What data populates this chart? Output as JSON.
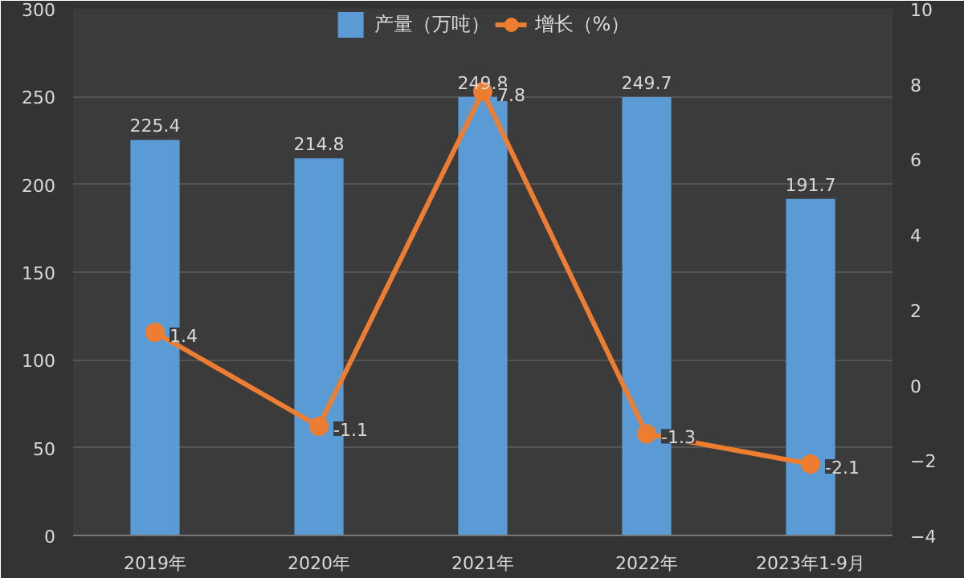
{
  "chart_data": {
    "type": "bar",
    "categories": [
      "2019年",
      "2020年",
      "2021年",
      "2022年",
      "2023年1-9月"
    ],
    "series": [
      {
        "name": "产量（万吨）",
        "color": "#5b9bd5",
        "values": [
          225.4,
          214.8,
          249.8,
          249.7,
          191.7
        ]
      },
      {
        "name": "增长（%）",
        "type": "line",
        "axis": "y2",
        "color": "#ed7d31",
        "values": [
          1.4,
          -1.1,
          7.8,
          -1.3,
          -2.1
        ]
      }
    ],
    "ylim": [
      0,
      300
    ],
    "yticks": [
      0,
      50,
      100,
      150,
      200,
      250,
      300
    ],
    "y2lim": [
      -4,
      10
    ],
    "y2ticks": [
      -4,
      -2,
      0,
      2,
      4,
      6,
      8,
      10
    ],
    "grid": "y",
    "legend": "top",
    "data_labels": true,
    "marker": "circle"
  }
}
